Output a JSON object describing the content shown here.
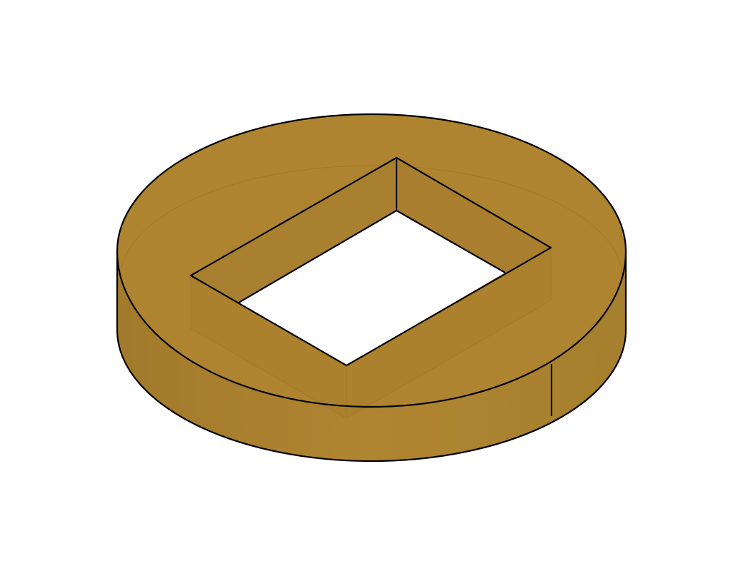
{
  "scene": {
    "object": "square-hole-washer",
    "view": "isometric",
    "material_color": "#ad8330",
    "edge_color": "#000000",
    "background_color": "#ffffff"
  }
}
